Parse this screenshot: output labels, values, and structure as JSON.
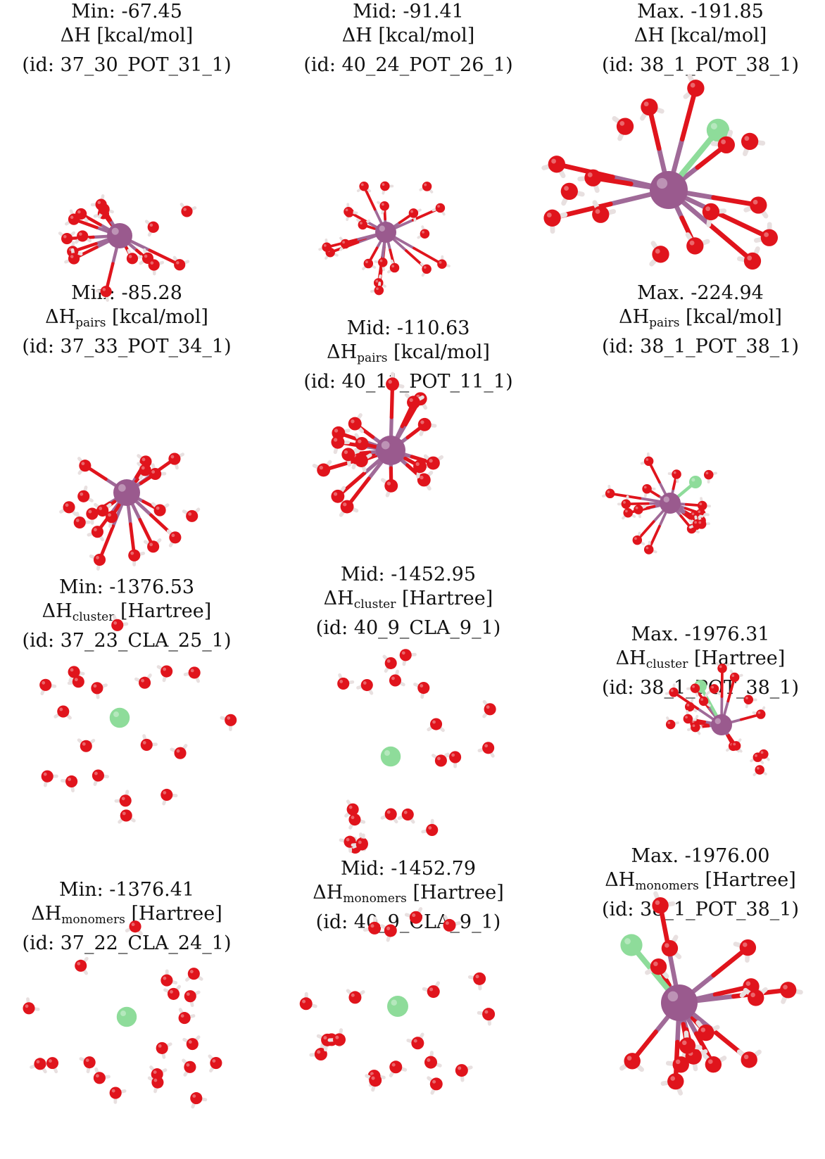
{
  "colors": {
    "oxygen": "#e0141c",
    "hydrogen": "#e8e0e0",
    "potassium": "#9a5a8e",
    "chlorine": "#8edc9a"
  },
  "panels": [
    {
      "title": "Min: -67.45",
      "sym": "ΔH",
      "sub": "",
      "unit": "[kcal/mol]",
      "id": "(id: 37_30_POT_31_1)"
    },
    {
      "title": "Mid: -91.41",
      "sym": "ΔH",
      "sub": "",
      "unit": "[kcal/mol]",
      "id": "(id: 40_24_POT_26_1)"
    },
    {
      "title": "Max. -191.85",
      "sym": "ΔH",
      "sub": "",
      "unit": "[kcal/mol]",
      "id": "(id: 38_1_POT_38_1)"
    },
    {
      "title": "Min: -85.28",
      "sym": "ΔH",
      "sub": "pairs",
      "unit": "[kcal/mol]",
      "id": "(id: 37_33_POT_34_1)"
    },
    {
      "title": "Mid: -110.63",
      "sym": "ΔH",
      "sub": "pairs",
      "unit": "[kcal/mol]",
      "id": "(id: 40_11_POT_11_1)"
    },
    {
      "title": "Max. -224.94",
      "sym": "ΔH",
      "sub": "pairs",
      "unit": "[kcal/mol]",
      "id": "(id: 38_1_POT_38_1)"
    },
    {
      "title": "Min: -1376.53",
      "sym": "ΔH",
      "sub": "cluster",
      "unit": "[Hartree]",
      "id": "(id: 37_23_CLA_25_1)"
    },
    {
      "title": "Mid: -1452.95",
      "sym": "ΔH",
      "sub": "cluster",
      "unit": "[Hartree]",
      "id": "(id: 40_9_CLA_9_1)"
    },
    {
      "title": "Max. -1976.31",
      "sym": "ΔH",
      "sub": "cluster",
      "unit": "[Hartree]",
      "id": "(id: 38_1_POT_38_1)"
    },
    {
      "title": "Min: -1376.41",
      "sym": "ΔH",
      "sub": "monomers",
      "unit": "[Hartree]",
      "id": "(id: 37_22_CLA_24_1)"
    },
    {
      "title": "Mid: -1452.79",
      "sym": "ΔH",
      "sub": "monomers",
      "unit": "[Hartree]",
      "id": "(id: 40_9_CLA_9_1)"
    },
    {
      "title": "Max. -1976.00",
      "sym": "ΔH",
      "sub": "monomers",
      "unit": "[Hartree]",
      "id": "(id: 38_1_POT_38_1)"
    }
  ]
}
